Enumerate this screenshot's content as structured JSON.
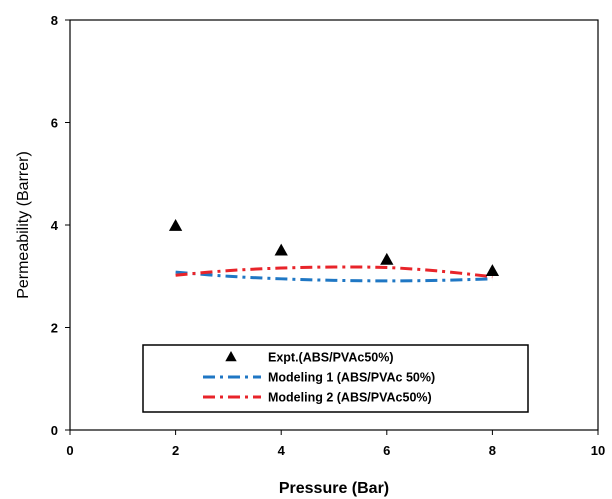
{
  "chart_data": {
    "type": "scatter",
    "title": "",
    "xlabel": "Pressure (Bar)",
    "ylabel": "Permeability (Barrer)",
    "xlim": [
      0,
      10
    ],
    "ylim": [
      0,
      8
    ],
    "xticks": [
      "0",
      "2",
      "4",
      "6",
      "8",
      "10"
    ],
    "yticks": [
      "0",
      "2",
      "4",
      "6",
      "8"
    ],
    "grid": false,
    "legend_position": "bottom-center",
    "series": [
      {
        "name": "Expt.(ABS/PVAc50%)",
        "kind": "markers",
        "marker": "triangle",
        "color": "#000000",
        "x": [
          2,
          4,
          6,
          8
        ],
        "y": [
          3.98,
          3.5,
          3.32,
          3.1
        ]
      },
      {
        "name": "Modeling 1 (ABS/PVAc 50%)",
        "kind": "line",
        "dash": "dash-dot",
        "color": "#1f77c4",
        "x": [
          2,
          3,
          4,
          5,
          6,
          7,
          8
        ],
        "y": [
          3.08,
          3.0,
          2.95,
          2.92,
          2.91,
          2.92,
          2.95
        ]
      },
      {
        "name": "Modeling 2 (ABS/PVAc50%)",
        "kind": "line",
        "dash": "dash-dot",
        "color": "#e8242a",
        "x": [
          2,
          3,
          4,
          5,
          6,
          7,
          8
        ],
        "y": [
          3.02,
          3.11,
          3.16,
          3.18,
          3.17,
          3.1,
          2.99
        ]
      }
    ]
  }
}
